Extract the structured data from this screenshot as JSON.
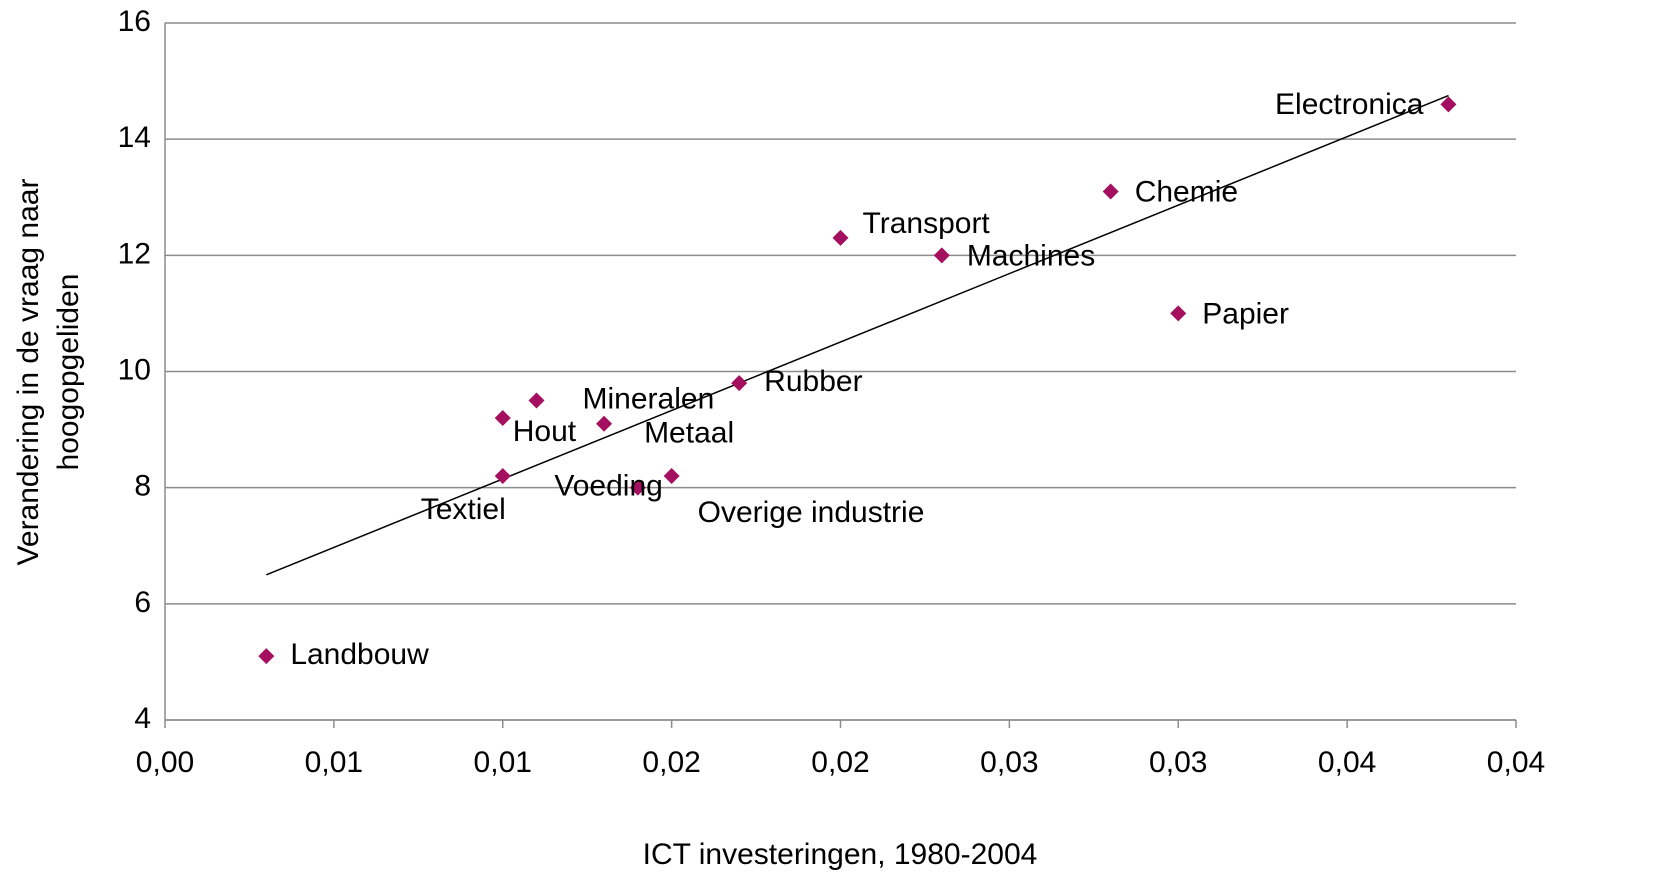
{
  "chart_data": {
    "type": "scatter",
    "xlabel": "ICT investeringen, 1980-2004",
    "ylabel": [
      "Verandering in de vraag naar",
      "hoogopgeliden"
    ],
    "labels": [
      "Landbouw",
      "Textiel",
      "Hout",
      "Mineralen",
      "Metaal",
      "Voeding",
      "Overige industrie",
      "Rubber",
      "Transport",
      "Machines",
      "Chemie",
      "Papier",
      "Electronica"
    ],
    "x": [
      0.003,
      0.01,
      0.01,
      0.011,
      0.013,
      0.014,
      0.015,
      0.017,
      0.02,
      0.023,
      0.028,
      0.03,
      0.038
    ],
    "y": [
      5.1,
      8.2,
      9.2,
      9.5,
      9.1,
      8.0,
      8.2,
      9.8,
      12.3,
      12.0,
      13.1,
      11.0,
      14.6
    ],
    "color": "#a50f5f",
    "trendline": {
      "x": [
        0.003,
        0.038
      ],
      "y": [
        6.5,
        14.75
      ]
    },
    "xlim": [
      0,
      0.04
    ],
    "xticks": [
      {
        "value": 0,
        "label": "0,00"
      },
      {
        "value": 0.005,
        "label": "0,01"
      },
      {
        "value": 0.01,
        "label": "0,01"
      },
      {
        "value": 0.015,
        "label": "0,02"
      },
      {
        "value": 0.02,
        "label": "0,02"
      },
      {
        "value": 0.025,
        "label": "0,03"
      },
      {
        "value": 0.03,
        "label": "0,03"
      },
      {
        "value": 0.035,
        "label": "0,04"
      },
      {
        "value": 0.04,
        "label": "0,04"
      }
    ],
    "ylim": [
      4,
      16
    ],
    "yticks": [
      4,
      6,
      8,
      10,
      12,
      14,
      16
    ],
    "grid": true
  }
}
